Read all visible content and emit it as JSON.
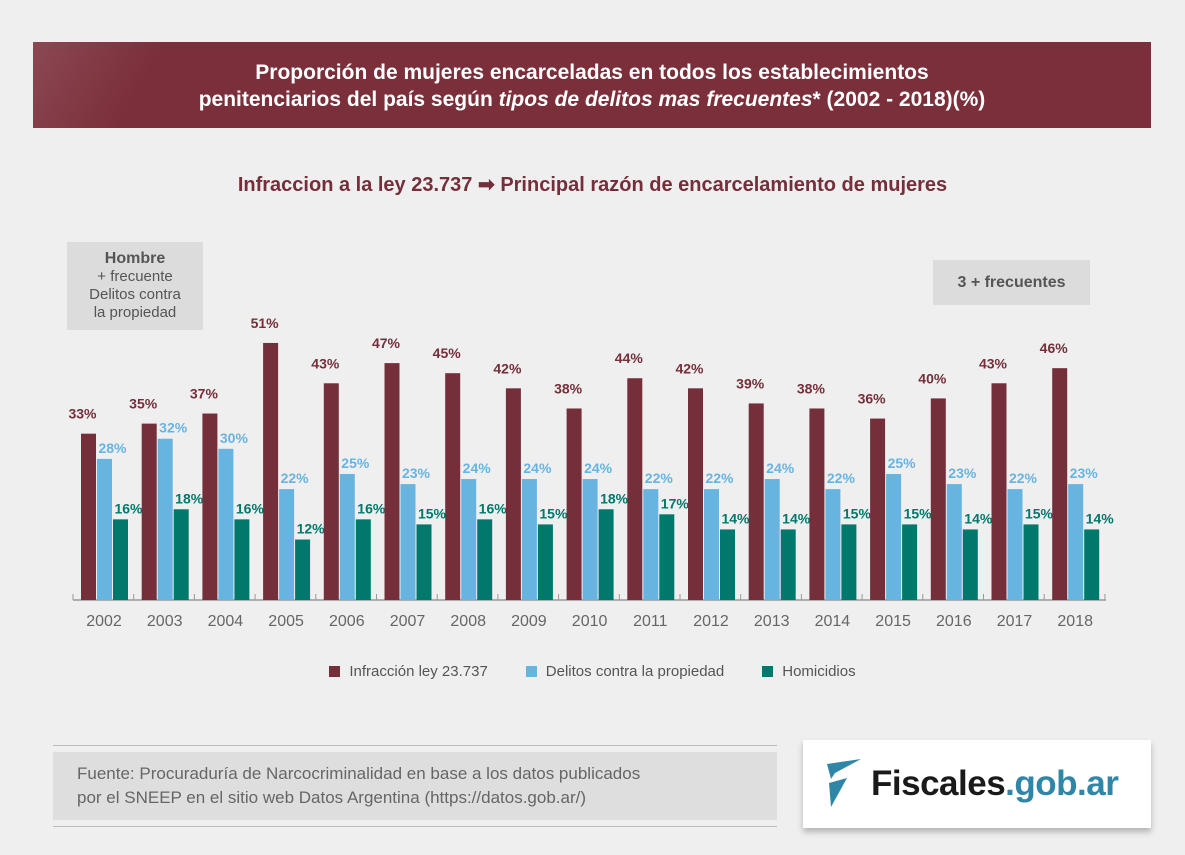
{
  "header": {
    "title_line1": "Proporción de mujeres encarceladas en todos los establecimientos",
    "title_line2_a": "penitenciarios del país según ",
    "title_line2_b": "tipos de delitos mas frecuentes",
    "title_line2_c": "* (2002 - 2018)(%)"
  },
  "subtitle": {
    "left": "Infraccion a la ley 23.737",
    "arrow": "➡",
    "right": "Principal razón de encarcelamiento de mujeres"
  },
  "hombre_box": {
    "title": "Hombre",
    "line1": "+ frecuente",
    "line2": "Delitos contra",
    "line3": "la propiedad"
  },
  "top3_box": "3 + frecuentes",
  "chart_data": {
    "type": "bar",
    "categories": [
      "2002",
      "2003",
      "2004",
      "2005",
      "2006",
      "2007",
      "2008",
      "2009",
      "2010",
      "2011",
      "2012",
      "2013",
      "2014",
      "2015",
      "2016",
      "2017",
      "2018"
    ],
    "series": [
      {
        "name": "Infracción ley 23.737",
        "color": "#742f3a",
        "values": [
          33,
          35,
          37,
          51,
          43,
          47,
          45,
          42,
          38,
          44,
          42,
          39,
          38,
          36,
          40,
          43,
          46
        ]
      },
      {
        "name": "Delitos contra la propiedad",
        "color": "#68b4e1",
        "values": [
          28,
          32,
          30,
          22,
          25,
          23,
          24,
          24,
          24,
          22,
          22,
          24,
          22,
          25,
          23,
          22,
          23
        ]
      },
      {
        "name": "Homicidios",
        "color": "#00786b",
        "values": [
          16,
          18,
          16,
          12,
          16,
          15,
          16,
          15,
          18,
          17,
          14,
          14,
          15,
          15,
          14,
          15,
          14
        ]
      }
    ],
    "label_suffix": "%",
    "ylim": [
      0,
      51
    ],
    "grid": false,
    "legend_placement": "bottom"
  },
  "source": {
    "line1": "Fuente: Procuraduría de Narcocriminalidad en base a los datos publicados",
    "line2": "por el SNEEP en el sitio web Datos Argentina (https://datos.gob.ar/)"
  },
  "logo": {
    "text_main": "Fiscales",
    "text_domain": ".gob.ar",
    "accent": "#2f86a6"
  }
}
